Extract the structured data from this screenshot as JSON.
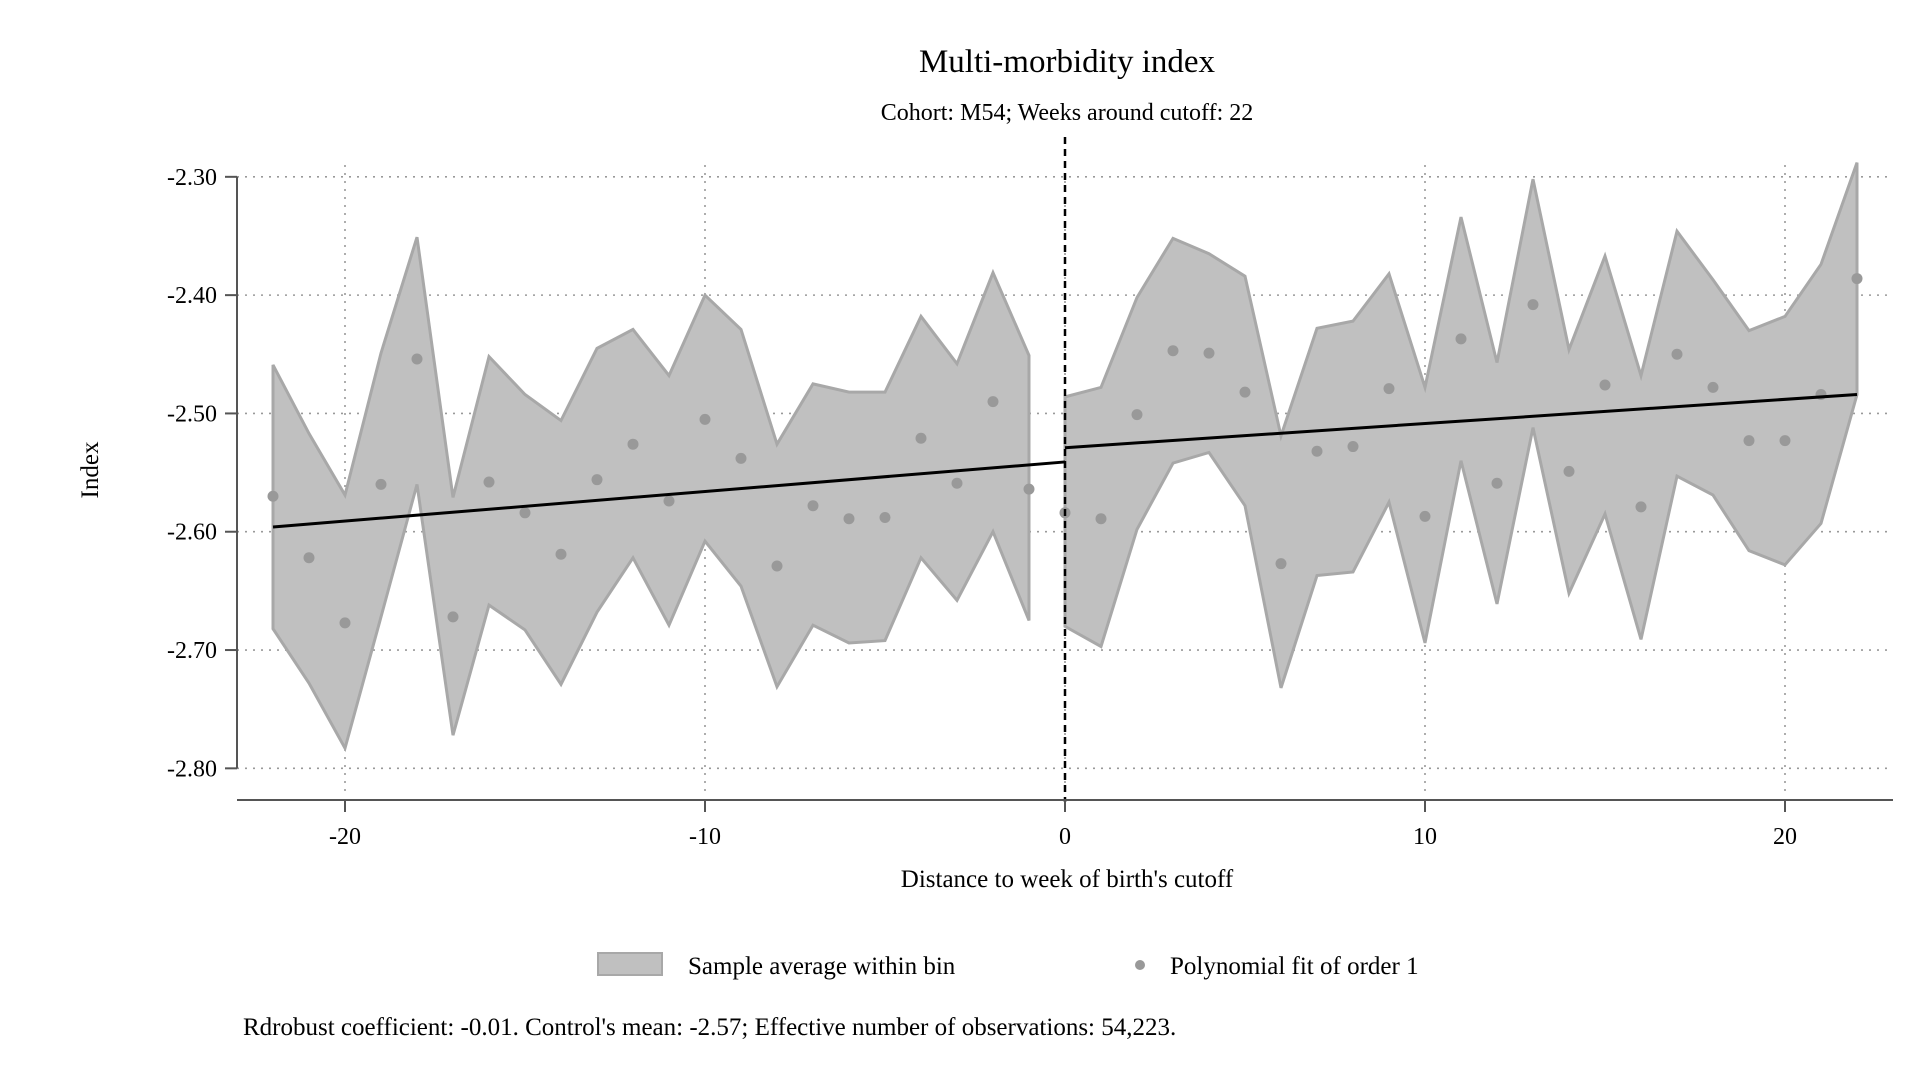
{
  "chart_data": {
    "type": "scatter",
    "title": "Multi-morbidity index",
    "subtitle": "Cohort: M54; Weeks around cutoff: 22",
    "xlabel": "Distance to week of birth's cutoff",
    "ylabel": "Index",
    "xlim": [
      -23,
      23
    ],
    "ylim": [
      -2.82,
      -2.29
    ],
    "x_ticks": [
      -20,
      -10,
      0,
      10,
      20
    ],
    "x_tick_labels": [
      "-20",
      "-10",
      "0",
      "10",
      "20"
    ],
    "y_ticks": [
      -2.3,
      -2.4,
      -2.5,
      -2.6,
      -2.7,
      -2.8
    ],
    "y_tick_labels": [
      "-2.30",
      "-2.40",
      "-2.50",
      "-2.60",
      "-2.70",
      "-2.80"
    ],
    "grid": true,
    "cutoff_x": 0,
    "legend": {
      "position": "bottom",
      "items": [
        {
          "label": "Sample average within bin",
          "kind": "band"
        },
        {
          "label": "Polynomial fit of order 1",
          "kind": "dot"
        }
      ]
    },
    "note": "Rdrobust coefficient: -0.01. Control's mean: -2.57; Effective number of observations: 54,223.",
    "colors": {
      "band_fill": "#c0c0c0",
      "band_stroke": "#a8a8a8",
      "points": "#999999",
      "fit": "#000000",
      "grid": "#999999"
    },
    "bins": {
      "x": [
        -22,
        -21,
        -20,
        -19,
        -18,
        -17,
        -16,
        -15,
        -14,
        -13,
        -12,
        -11,
        -10,
        -9,
        -8,
        -7,
        -6,
        -5,
        -4,
        -3,
        -2,
        -1,
        0,
        1,
        2,
        3,
        4,
        5,
        6,
        7,
        8,
        9,
        10,
        11,
        12,
        13,
        14,
        15,
        16,
        17,
        18,
        19,
        20,
        21,
        22
      ],
      "mean": [
        -2.57,
        -2.622,
        -2.677,
        -2.56,
        -2.454,
        -2.672,
        -2.558,
        -2.584,
        -2.619,
        -2.556,
        -2.526,
        -2.574,
        -2.505,
        -2.538,
        -2.629,
        -2.578,
        -2.589,
        -2.588,
        -2.521,
        -2.559,
        -2.49,
        -2.564,
        -2.584,
        -2.589,
        -2.501,
        -2.447,
        -2.449,
        -2.482,
        -2.627,
        -2.532,
        -2.528,
        -2.479,
        -2.587,
        -2.437,
        -2.559,
        -2.408,
        -2.549,
        -2.476,
        -2.579,
        -2.45,
        -2.478,
        -2.523,
        -2.523,
        -2.484,
        -2.386
      ],
      "upper": [
        -2.459,
        -2.517,
        -2.569,
        -2.449,
        -2.351,
        -2.571,
        -2.452,
        -2.484,
        -2.506,
        -2.445,
        -2.429,
        -2.468,
        -2.4,
        -2.429,
        -2.526,
        -2.475,
        -2.482,
        -2.482,
        -2.418,
        -2.458,
        -2.381,
        -2.451,
        -2.486,
        -2.478,
        -2.402,
        -2.352,
        -2.365,
        -2.384,
        -2.519,
        -2.428,
        -2.422,
        -2.382,
        -2.478,
        -2.334,
        -2.457,
        -2.302,
        -2.446,
        -2.367,
        -2.468,
        -2.346,
        -2.387,
        -2.43,
        -2.418,
        -2.374,
        -2.288
      ],
      "lower": [
        -2.682,
        -2.728,
        -2.783,
        -2.672,
        -2.56,
        -2.772,
        -2.662,
        -2.683,
        -2.729,
        -2.668,
        -2.622,
        -2.679,
        -2.608,
        -2.646,
        -2.731,
        -2.679,
        -2.694,
        -2.692,
        -2.622,
        -2.658,
        -2.6,
        -2.675,
        -2.68,
        -2.697,
        -2.598,
        -2.542,
        -2.533,
        -2.578,
        -2.732,
        -2.637,
        -2.634,
        -2.575,
        -2.694,
        -2.54,
        -2.661,
        -2.512,
        -2.652,
        -2.585,
        -2.691,
        -2.553,
        -2.569,
        -2.616,
        -2.628,
        -2.593,
        -2.484
      ]
    },
    "fit": [
      {
        "x": [
          -22,
          0
        ],
        "y": [
          -2.596,
          -2.541
        ]
      },
      {
        "x": [
          0,
          22
        ],
        "y": [
          -2.529,
          -2.484
        ]
      }
    ]
  }
}
